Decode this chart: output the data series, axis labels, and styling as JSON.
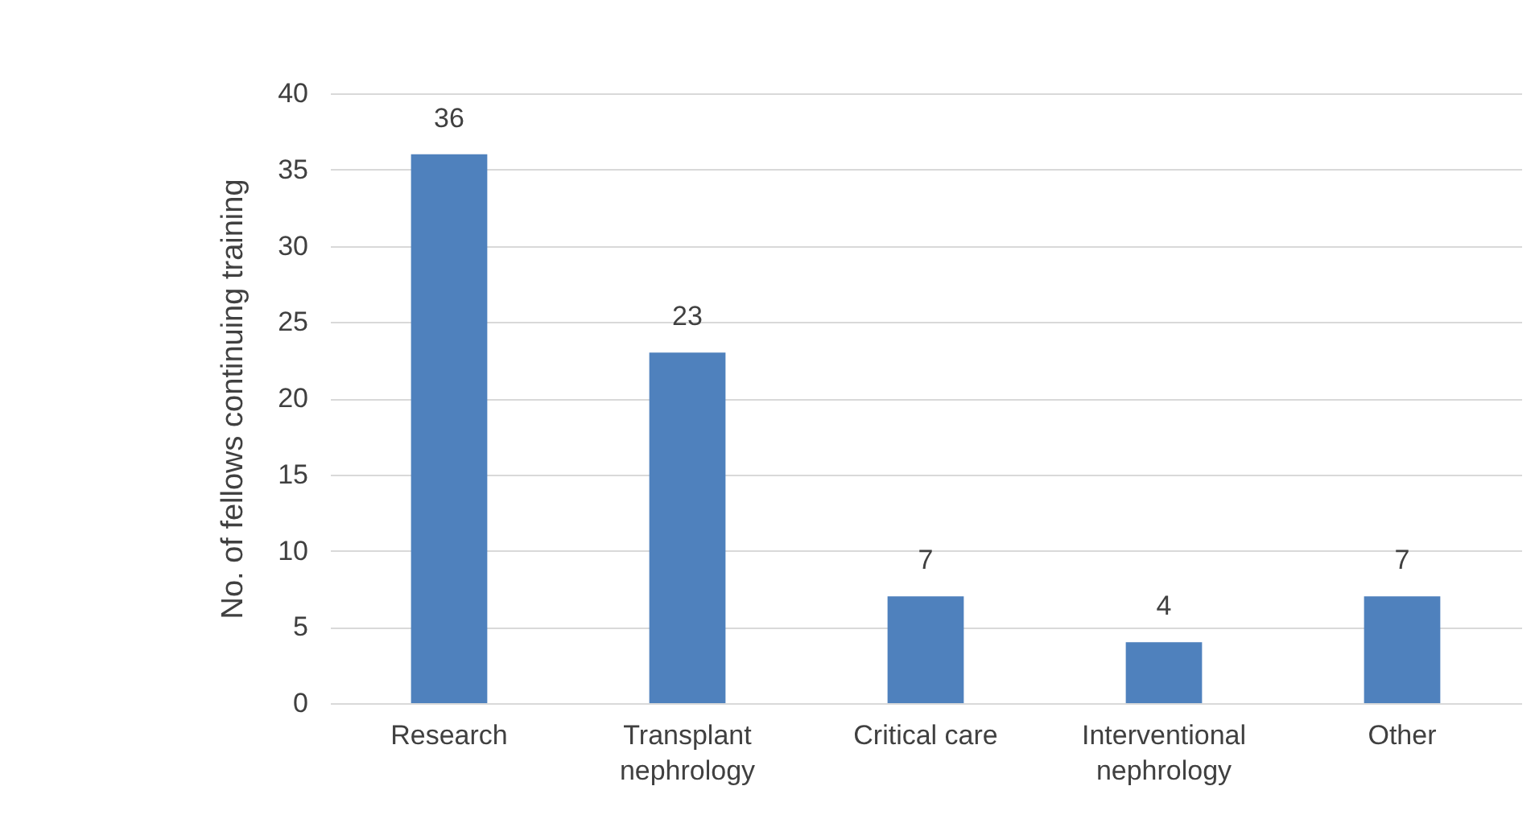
{
  "chart_data": {
    "type": "bar",
    "ylabel": "No. of fellows continuing  training",
    "categories": [
      "Research",
      "Transplant nephrology",
      "Critical care",
      "Interventional nephrology",
      "Other"
    ],
    "values": [
      36,
      23,
      7,
      4,
      7
    ],
    "color": "#4f81bd",
    "ylim": [
      0,
      40
    ],
    "yticks": [
      0,
      5,
      10,
      15,
      20,
      25,
      30,
      35,
      40
    ],
    "grid": "y",
    "data_labels": true
  }
}
